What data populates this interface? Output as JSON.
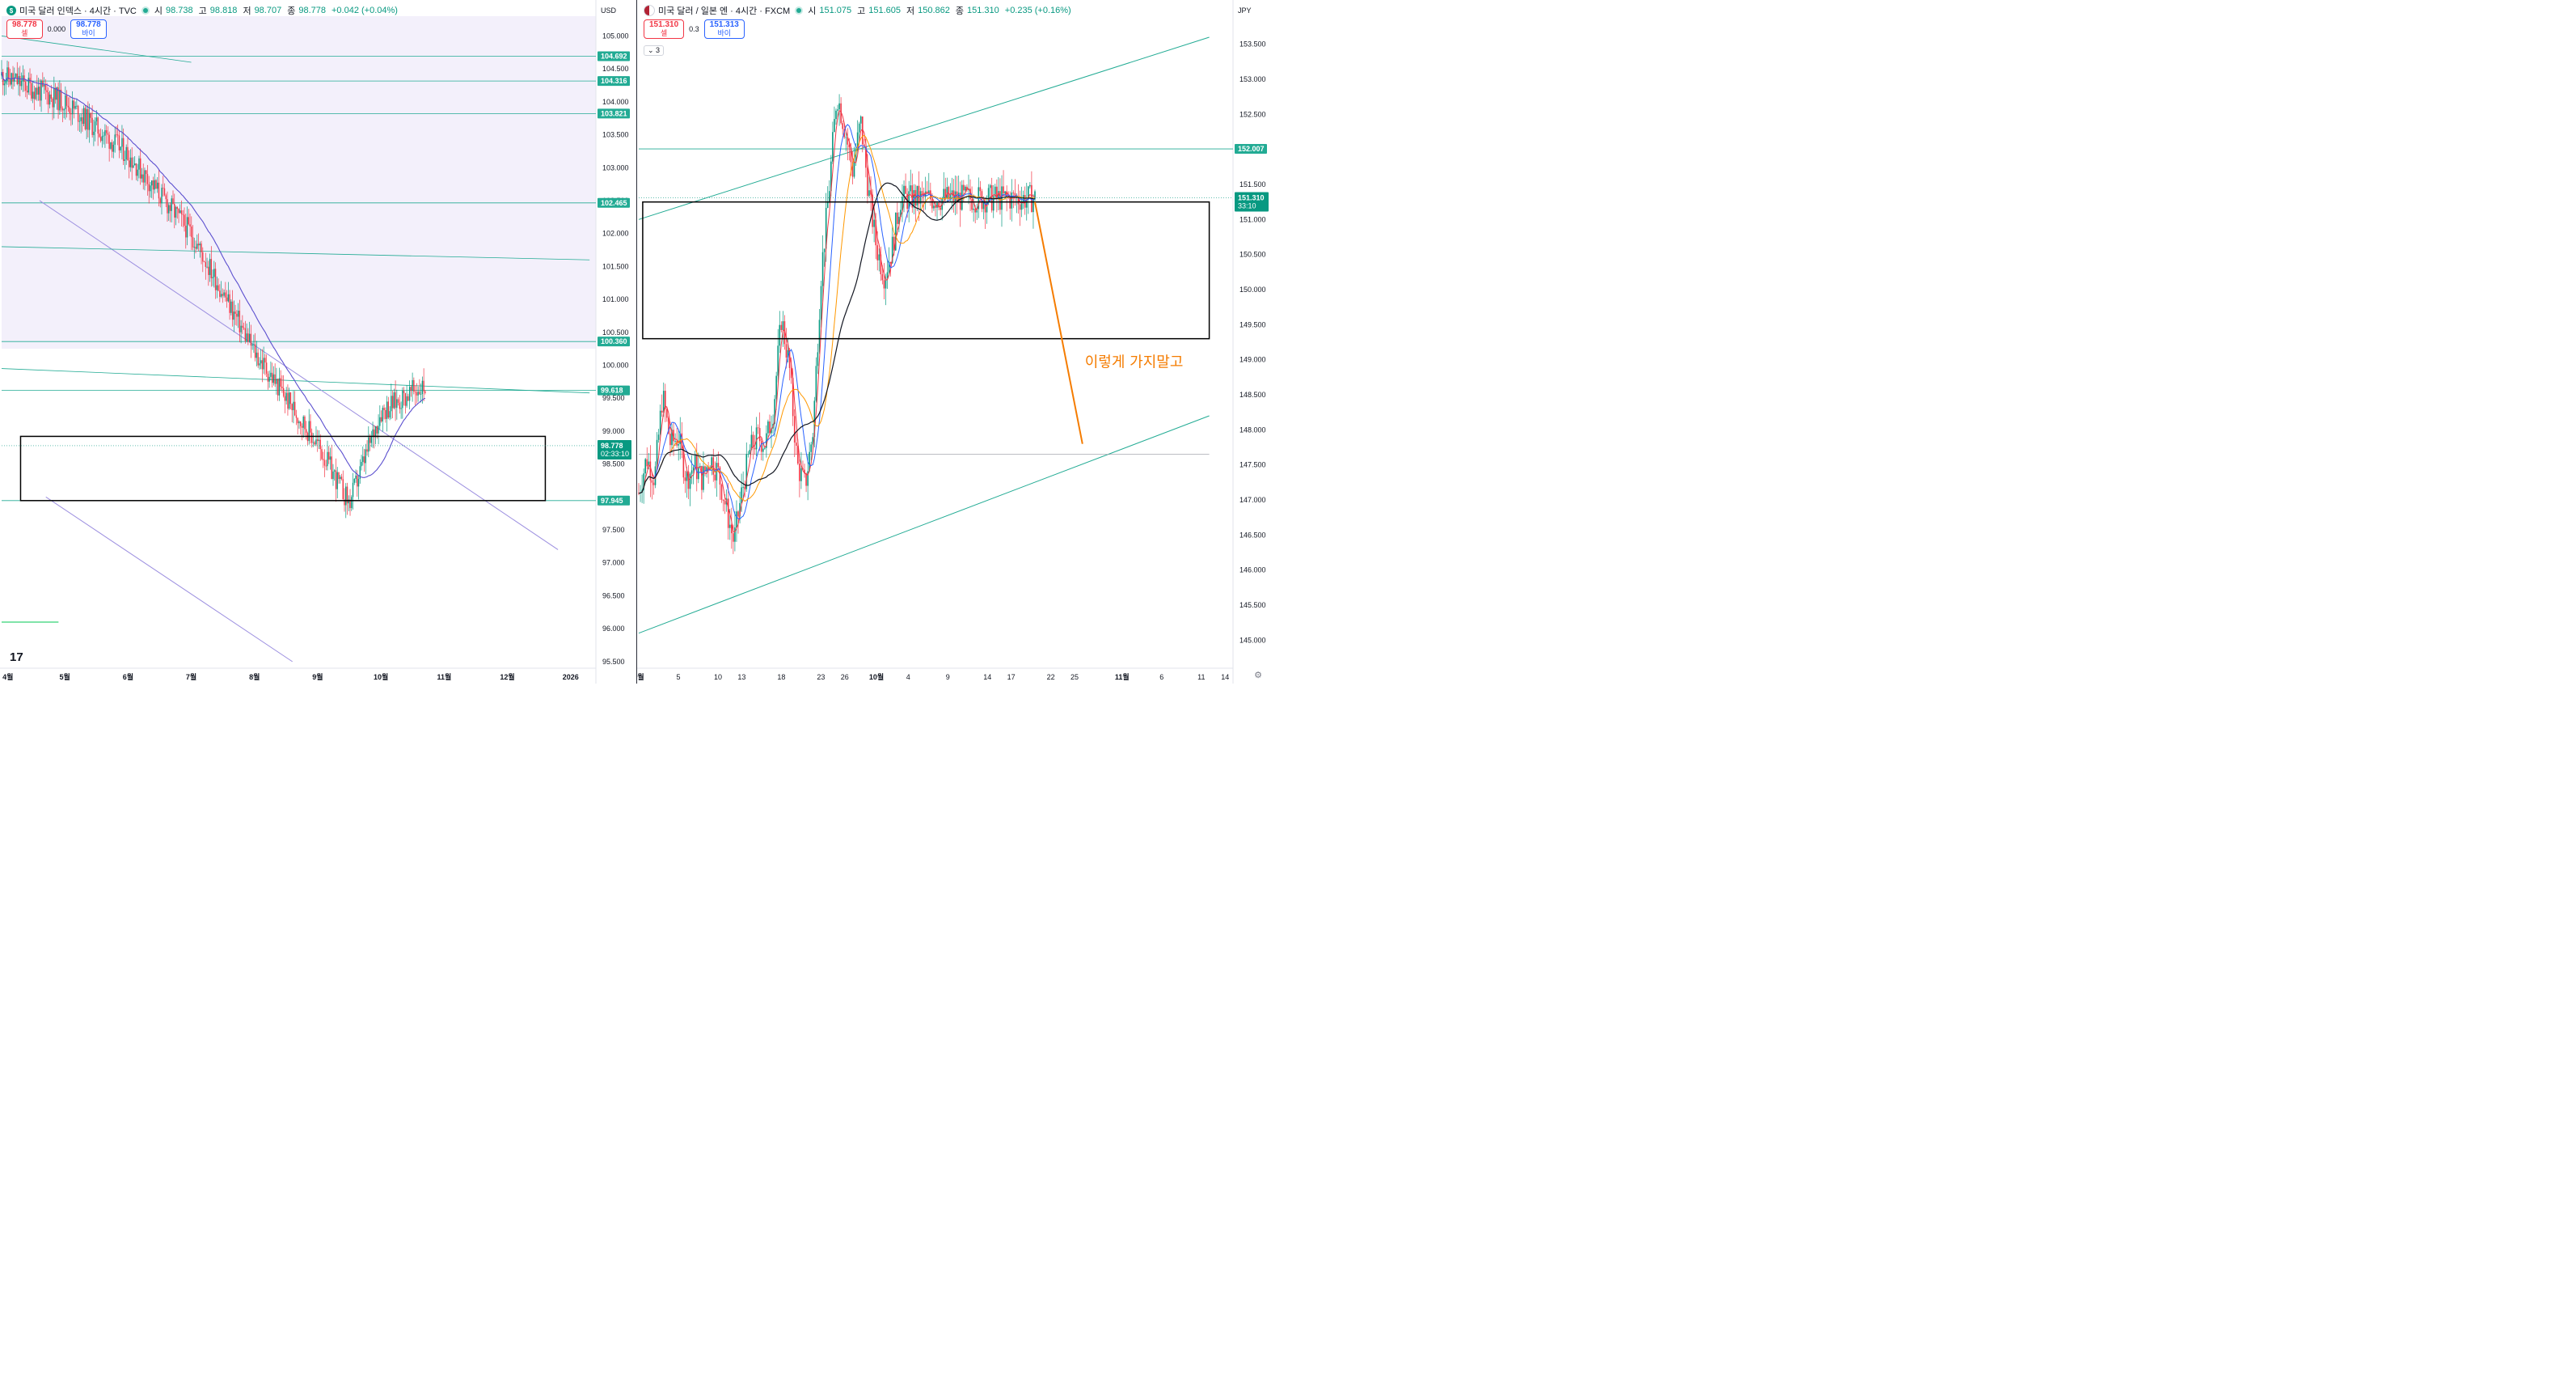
{
  "left": {
    "header": {
      "symbol_icon": "$",
      "title": "미국 달러 인덱스 · 4시간 · TVC",
      "open_label": "시",
      "open": "98.738",
      "high_label": "고",
      "high": "98.818",
      "low_label": "저",
      "low": "98.707",
      "close_label": "종",
      "close": "98.778",
      "change": "+0.042 (+0.04%)"
    },
    "sell_price": "98.778",
    "sell_label": "셀",
    "spread": "0.000",
    "buy_price": "98.778",
    "buy_label": "바이",
    "currency": "USD"
  },
  "right": {
    "header": {
      "symbol_icon": "flag-us-jp-icon",
      "title": "미국 달러 / 일본 엔 · 4시간 · FXCM",
      "open_label": "시",
      "open": "151.075",
      "high_label": "고",
      "high": "151.605",
      "low_label": "저",
      "low": "150.862",
      "close_label": "종",
      "close": "151.310",
      "change": "+0.235 (+0.16%)"
    },
    "sell_price": "151.310",
    "sell_label": "셀",
    "spread": "0.3",
    "buy_price": "151.313",
    "buy_label": "바이",
    "indicators_collapsed": "3",
    "currency": "JPY",
    "annotation": "이렇게 가지말고"
  },
  "colors": {
    "up": "#089981",
    "down": "#f23645",
    "level": "#22ab94",
    "ma_purple": "#5b4fcf",
    "channel": "#9c8fe0",
    "annotation": "#f57c00"
  },
  "chart_data": [
    {
      "type": "candlestick",
      "title": "미국 달러 인덱스 · 4시간 · TVC",
      "y_tick_labels": [
        "96.000",
        "96.500",
        "97.000",
        "97.500",
        "98.500",
        "99.000",
        "99.500",
        "100.000",
        "100.500",
        "101.000",
        "101.500",
        "102.000",
        "102.500",
        "103.000",
        "103.500",
        "104.000",
        "104.500",
        "105.000",
        "95.500"
      ],
      "x_tick_labels": [
        "4월",
        "5월",
        "6월",
        "7월",
        "8월",
        "9월",
        "10월",
        "11월",
        "12월",
        "2026"
      ],
      "ylim": [
        95.4,
        105.3
      ],
      "price_labels": [
        {
          "value": 104.692,
          "label": "104.692"
        },
        {
          "value": 104.316,
          "label": "104.316"
        },
        {
          "value": 103.821,
          "label": "103.821"
        },
        {
          "value": 102.465,
          "label": "102.465"
        },
        {
          "value": 100.36,
          "label": "100.360"
        },
        {
          "value": 99.618,
          "label": "99.618"
        },
        {
          "value": 97.945,
          "label": "97.945"
        }
      ],
      "current_price": {
        "value": 98.778,
        "label": "98.778",
        "countdown": "02:33:10"
      },
      "path": [
        [
          0,
          104.4
        ],
        [
          1,
          104.0
        ],
        [
          2,
          103.2
        ],
        [
          3,
          102.0
        ],
        [
          4,
          100.2
        ],
        [
          5,
          98.8
        ],
        [
          5.5,
          97.9
        ],
        [
          6,
          99.3
        ],
        [
          6.5,
          99.6
        ],
        [
          7,
          99.8
        ],
        [
          7.5,
          99.3
        ],
        [
          8,
          99.5
        ],
        [
          8.5,
          101.1
        ],
        [
          9,
          100.2
        ],
        [
          9.5,
          99.2
        ],
        [
          10,
          99.5
        ],
        [
          10.5,
          98.9
        ],
        [
          11,
          99.4
        ],
        [
          11.5,
          98.4
        ],
        [
          12,
          97.6
        ],
        [
          12.5,
          97.2
        ],
        [
          13,
          96.8
        ],
        [
          13.5,
          97.4
        ],
        [
          14,
          98.2
        ],
        [
          14.5,
          98.6
        ],
        [
          15,
          97.6
        ],
        [
          15.5,
          97.1
        ],
        [
          16,
          98.6
        ],
        [
          16.5,
          100.1
        ],
        [
          17,
          98.6
        ],
        [
          17.5,
          98.3
        ],
        [
          18,
          98.6
        ],
        [
          18.5,
          98.1
        ],
        [
          19,
          98.7
        ],
        [
          19.5,
          98.2
        ],
        [
          20,
          98.4
        ],
        [
          20.5,
          98.2
        ],
        [
          21,
          98.0
        ],
        [
          21.5,
          97.4
        ],
        [
          22,
          96.5
        ],
        [
          22.5,
          97.9
        ],
        [
          23,
          98.2
        ],
        [
          23.5,
          97.6
        ],
        [
          24,
          98.3
        ],
        [
          24.5,
          98.6
        ],
        [
          25,
          99.3
        ],
        [
          25.5,
          98.9
        ],
        [
          26,
          98.4
        ],
        [
          26.5,
          98.9
        ]
      ],
      "x_path_units": "months since April 1 (0 = 4월, 1 month = 1 unit)"
    },
    {
      "type": "candlestick",
      "title": "미국 달러 / 일본 엔 · 4시간 · FXCM",
      "y_tick_labels": [
        "145.000",
        "145.500",
        "146.000",
        "146.500",
        "147.000",
        "147.500",
        "148.000",
        "148.500",
        "149.000",
        "149.500",
        "150.000",
        "150.500",
        "151.000",
        "151.500",
        "152.500",
        "153.000",
        "153.500"
      ],
      "x_tick_labels": [
        "9월",
        "5",
        "10",
        "13",
        "18",
        "23",
        "26",
        "10월",
        "4",
        "9",
        "14",
        "17",
        "22",
        "25",
        "11월",
        "6",
        "11",
        "14"
      ],
      "ylim": [
        144.6,
        153.9
      ],
      "price_labels": [
        {
          "value": 152.007,
          "label": "152.007"
        }
      ],
      "current_price": {
        "value": 151.31,
        "label": "151.310",
        "countdown": "33:10"
      },
      "path": [
        [
          0,
          147.1
        ],
        [
          1,
          147.6
        ],
        [
          2,
          147.3
        ],
        [
          3,
          148.5
        ],
        [
          4,
          147.8
        ],
        [
          5,
          147.9
        ],
        [
          6,
          147.3
        ],
        [
          7,
          147.5
        ],
        [
          8,
          147.3
        ],
        [
          9,
          147.6
        ],
        [
          10,
          147.4
        ],
        [
          11,
          146.9
        ],
        [
          12,
          146.4
        ],
        [
          13,
          147.1
        ],
        [
          14,
          147.7
        ],
        [
          15,
          147.9
        ],
        [
          16,
          147.8
        ],
        [
          17,
          148.3
        ],
        [
          18,
          149.6
        ],
        [
          19,
          148.9
        ],
        [
          20,
          147.5
        ],
        [
          21,
          147.2
        ],
        [
          22,
          148.0
        ],
        [
          23,
          150.2
        ],
        [
          24,
          151.4
        ],
        [
          25,
          152.8
        ],
        [
          26,
          152.3
        ],
        [
          27,
          151.7
        ],
        [
          28,
          152.4
        ],
        [
          29,
          151.4
        ],
        [
          30,
          150.6
        ],
        [
          31,
          150.2
        ],
        [
          32,
          150.6
        ],
        [
          33,
          151.3
        ]
      ],
      "x_path_units": "days since September 1",
      "annotation": "이렇게 가지말고"
    }
  ]
}
